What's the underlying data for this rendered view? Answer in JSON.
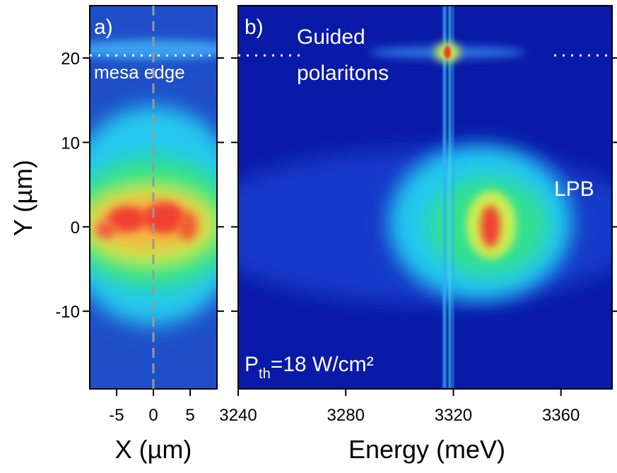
{
  "chart_data": [
    {
      "type": "heatmap",
      "label": "a)",
      "annotation": "mesa edge",
      "mesa_edge_y": 20.3,
      "xlabel": "X (µm)",
      "ylabel": "Y (µm)",
      "xlim": [
        -8.65,
        8.65
      ],
      "ylim": [
        -19.2,
        26.2
      ],
      "xticks": [
        -5,
        0,
        5
      ],
      "yticks": [
        -10,
        0,
        10,
        20
      ],
      "center_line_x": 0
    },
    {
      "type": "heatmap",
      "label": "b)",
      "annotations": [
        "Guided",
        "polaritons",
        "LPB"
      ],
      "threshold": {
        "symbol": "P",
        "subscript": "th",
        "text": "=18 W/cm²"
      },
      "xlabel": "Energy (meV)",
      "xlim": [
        3240,
        3379
      ],
      "ylim": [
        -19.2,
        26.2
      ],
      "xticks": [
        3240,
        3280,
        3320,
        3360
      ]
    }
  ]
}
